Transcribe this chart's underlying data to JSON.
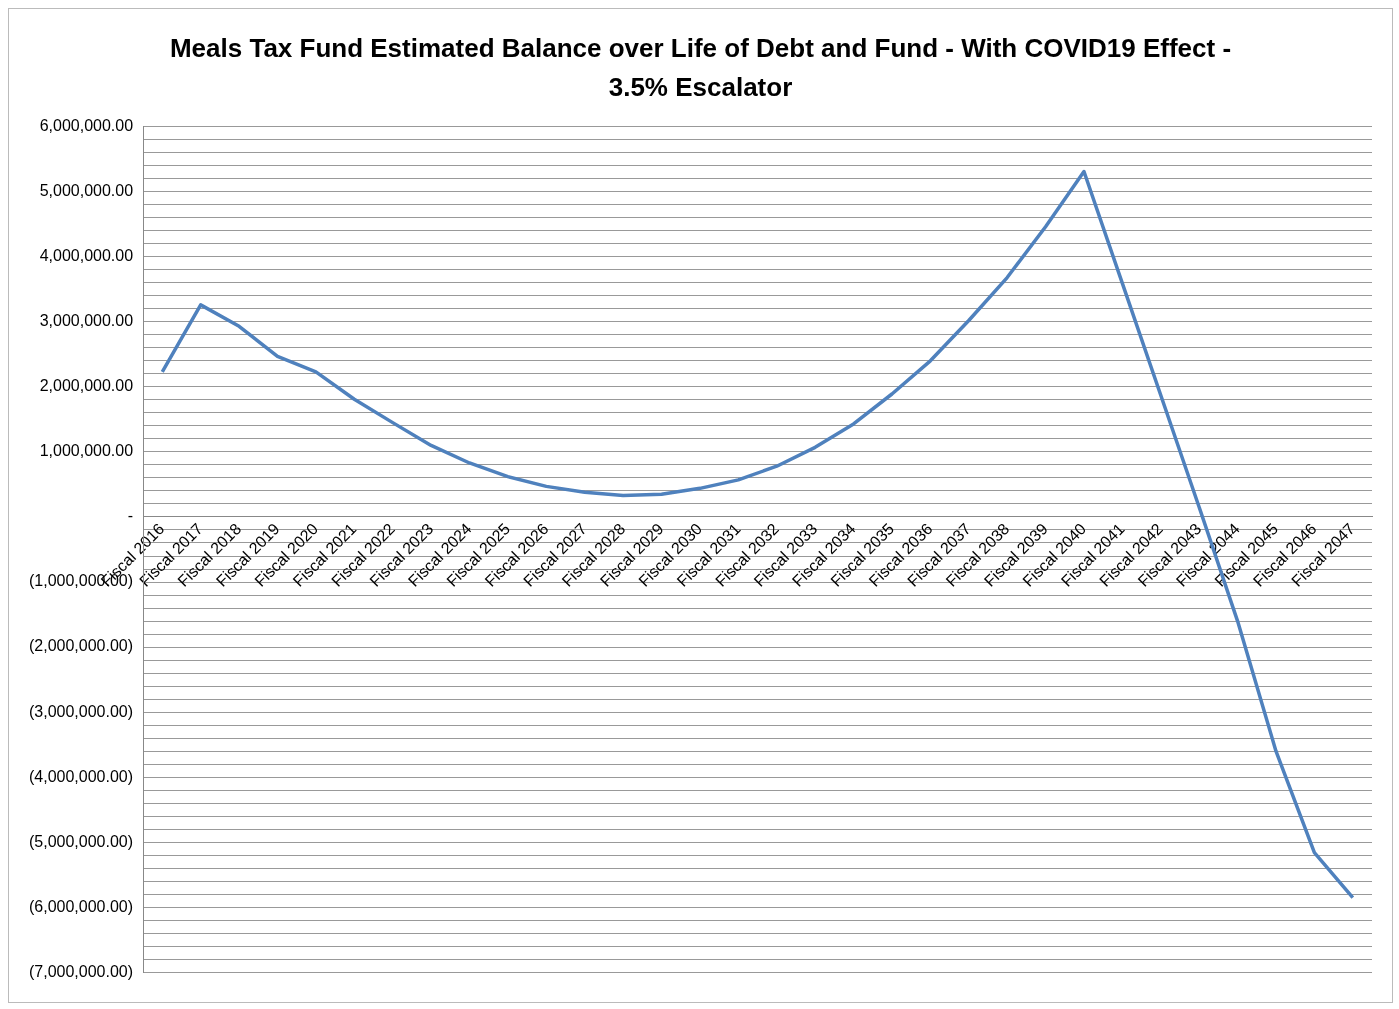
{
  "chart_data": {
    "type": "line",
    "title": "Meals Tax Fund Estimated Balance over Life of Debt and Fund - With COVID19 Effect - 3.5% Escalator",
    "categories": [
      "Fiscal 2016",
      "Fiscal 2017",
      "Fiscal 2018",
      "Fiscal 2019",
      "Fiscal 2020",
      "Fiscal 2021",
      "Fiscal 2022",
      "Fiscal 2023",
      "Fiscal 2024",
      "Fiscal 2025",
      "Fiscal 2026",
      "Fiscal 2027",
      "Fiscal 2028",
      "Fiscal 2029",
      "Fiscal 2030",
      "Fiscal 2031",
      "Fiscal 2032",
      "Fiscal 2033",
      "Fiscal 2034",
      "Fiscal 2035",
      "Fiscal 2036",
      "Fiscal 2037",
      "Fiscal 2038",
      "Fiscal 2039",
      "Fiscal 2040",
      "Fiscal 2041",
      "Fiscal 2042",
      "Fiscal 2043",
      "Fiscal 2044",
      "Fiscal 2045",
      "Fiscal 2046",
      "Fiscal 2047"
    ],
    "series": [
      {
        "color": "#4f81bd",
        "values": [
          2230000,
          3260000,
          2930000,
          2470000,
          2230000,
          1810000,
          1450000,
          1100000,
          830000,
          620000,
          470000,
          380000,
          330000,
          350000,
          440000,
          570000,
          780000,
          1070000,
          1430000,
          1890000,
          2400000,
          3020000,
          3680000,
          4460000,
          5310000,
          3590000,
          1870000,
          150000,
          -1600000,
          -3600000,
          -5160000,
          -5850000
        ]
      }
    ],
    "ylim": [
      -7000000,
      6000000
    ],
    "yticks": [
      {
        "value": -7000000,
        "label": "(7,000,000.00)"
      },
      {
        "value": -6800000,
        "label": null
      },
      {
        "value": -6600000,
        "label": null
      },
      {
        "value": -6400000,
        "label": null
      },
      {
        "value": -6200000,
        "label": null
      },
      {
        "value": -6000000,
        "label": "(6,000,000.00)"
      },
      {
        "value": -5800000,
        "label": null
      },
      {
        "value": -5600000,
        "label": null
      },
      {
        "value": -5400000,
        "label": null
      },
      {
        "value": -5200000,
        "label": null
      },
      {
        "value": -5000000,
        "label": "(5,000,000.00)"
      },
      {
        "value": -4800000,
        "label": null
      },
      {
        "value": -4600000,
        "label": null
      },
      {
        "value": -4400000,
        "label": null
      },
      {
        "value": -4200000,
        "label": null
      },
      {
        "value": -4000000,
        "label": "(4,000,000.00)"
      },
      {
        "value": -3800000,
        "label": null
      },
      {
        "value": -3600000,
        "label": null
      },
      {
        "value": -3400000,
        "label": null
      },
      {
        "value": -3200000,
        "label": null
      },
      {
        "value": -3000000,
        "label": "(3,000,000.00)"
      },
      {
        "value": -2800000,
        "label": null
      },
      {
        "value": -2600000,
        "label": null
      },
      {
        "value": -2400000,
        "label": null
      },
      {
        "value": -2200000,
        "label": null
      },
      {
        "value": -2000000,
        "label": "(2,000,000.00)"
      },
      {
        "value": -1800000,
        "label": null
      },
      {
        "value": -1600000,
        "label": null
      },
      {
        "value": -1400000,
        "label": null
      },
      {
        "value": -1200000,
        "label": null
      },
      {
        "value": -1000000,
        "label": "(1,000,000.00)"
      },
      {
        "value": -800000,
        "label": null
      },
      {
        "value": -600000,
        "label": null
      },
      {
        "value": -400000,
        "label": null
      },
      {
        "value": -200000,
        "label": null
      },
      {
        "value": 0,
        "label": "-"
      },
      {
        "value": 200000,
        "label": null
      },
      {
        "value": 400000,
        "label": null
      },
      {
        "value": 600000,
        "label": null
      },
      {
        "value": 800000,
        "label": null
      },
      {
        "value": 1000000,
        "label": "1,000,000.00"
      },
      {
        "value": 1200000,
        "label": null
      },
      {
        "value": 1400000,
        "label": null
      },
      {
        "value": 1600000,
        "label": null
      },
      {
        "value": 1800000,
        "label": null
      },
      {
        "value": 2000000,
        "label": "2,000,000.00"
      },
      {
        "value": 2200000,
        "label": null
      },
      {
        "value": 2400000,
        "label": null
      },
      {
        "value": 2600000,
        "label": null
      },
      {
        "value": 2800000,
        "label": null
      },
      {
        "value": 3000000,
        "label": "3,000,000.00"
      },
      {
        "value": 3200000,
        "label": null
      },
      {
        "value": 3400000,
        "label": null
      },
      {
        "value": 3600000,
        "label": null
      },
      {
        "value": 3800000,
        "label": null
      },
      {
        "value": 4000000,
        "label": "4,000,000.00"
      },
      {
        "value": 4200000,
        "label": null
      },
      {
        "value": 4400000,
        "label": null
      },
      {
        "value": 4600000,
        "label": null
      },
      {
        "value": 4800000,
        "label": null
      },
      {
        "value": 5000000,
        "label": "5,000,000.00"
      },
      {
        "value": 5200000,
        "label": null
      },
      {
        "value": 5400000,
        "label": null
      },
      {
        "value": 5600000,
        "label": null
      },
      {
        "value": 5800000,
        "label": null
      },
      {
        "value": 6000000,
        "label": "6,000,000.00"
      }
    ],
    "grid": "y",
    "marker": "none",
    "line_style": "solid"
  }
}
